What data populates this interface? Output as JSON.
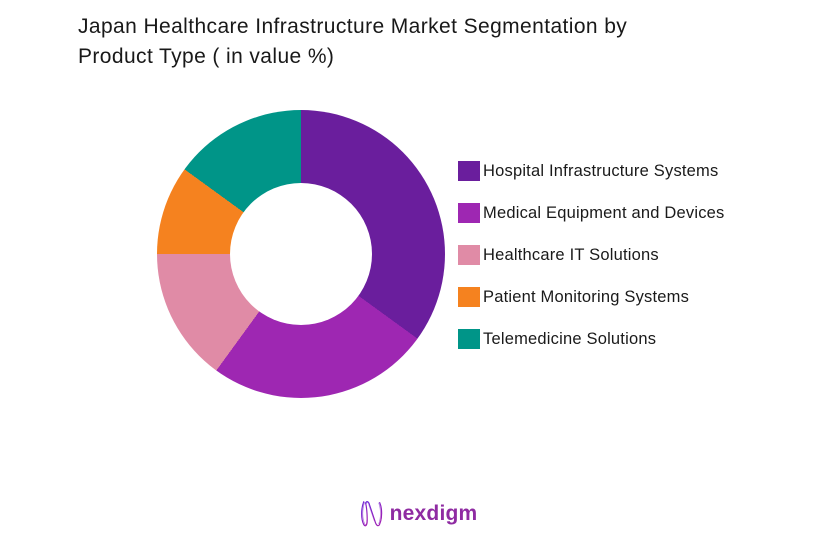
{
  "title": {
    "lines": [
      "Japan Healthcare Infrastructure Market Segmentation by",
      "Product Type ( in value %)"
    ],
    "full_text": "Japan Healthcare Infrastructure Market Segmentation by Product Type ( in value %)"
  },
  "chart_data": {
    "type": "pie",
    "subtype": "donut",
    "title": "Japan Healthcare Infrastructure Market Segmentation by Product Type ( in value %)",
    "unit": "value %",
    "labels": [
      "Hospital Infrastructure Systems",
      "Medical Equipment and Devices",
      "Healthcare IT Solutions",
      "Patient Monitoring Systems",
      "Telemedicine Solutions"
    ],
    "values": [
      35,
      25,
      15,
      10,
      15
    ],
    "colors": [
      "#6A1E9D",
      "#9E27B2",
      "#E08BA6",
      "#F5821F",
      "#009588"
    ],
    "start_angle_deg": 0,
    "direction": "clockwise",
    "inner_radius_ratio": 0.49,
    "legend_position": "right",
    "data_labels_shown": false
  },
  "footer": {
    "brand": "nexdigm",
    "brand_color": "#8F2BA2",
    "logo_icon": "nexdigm-n-wave-icon",
    "logo_gradient": [
      "#6D28D9",
      "#A21CAF"
    ]
  }
}
